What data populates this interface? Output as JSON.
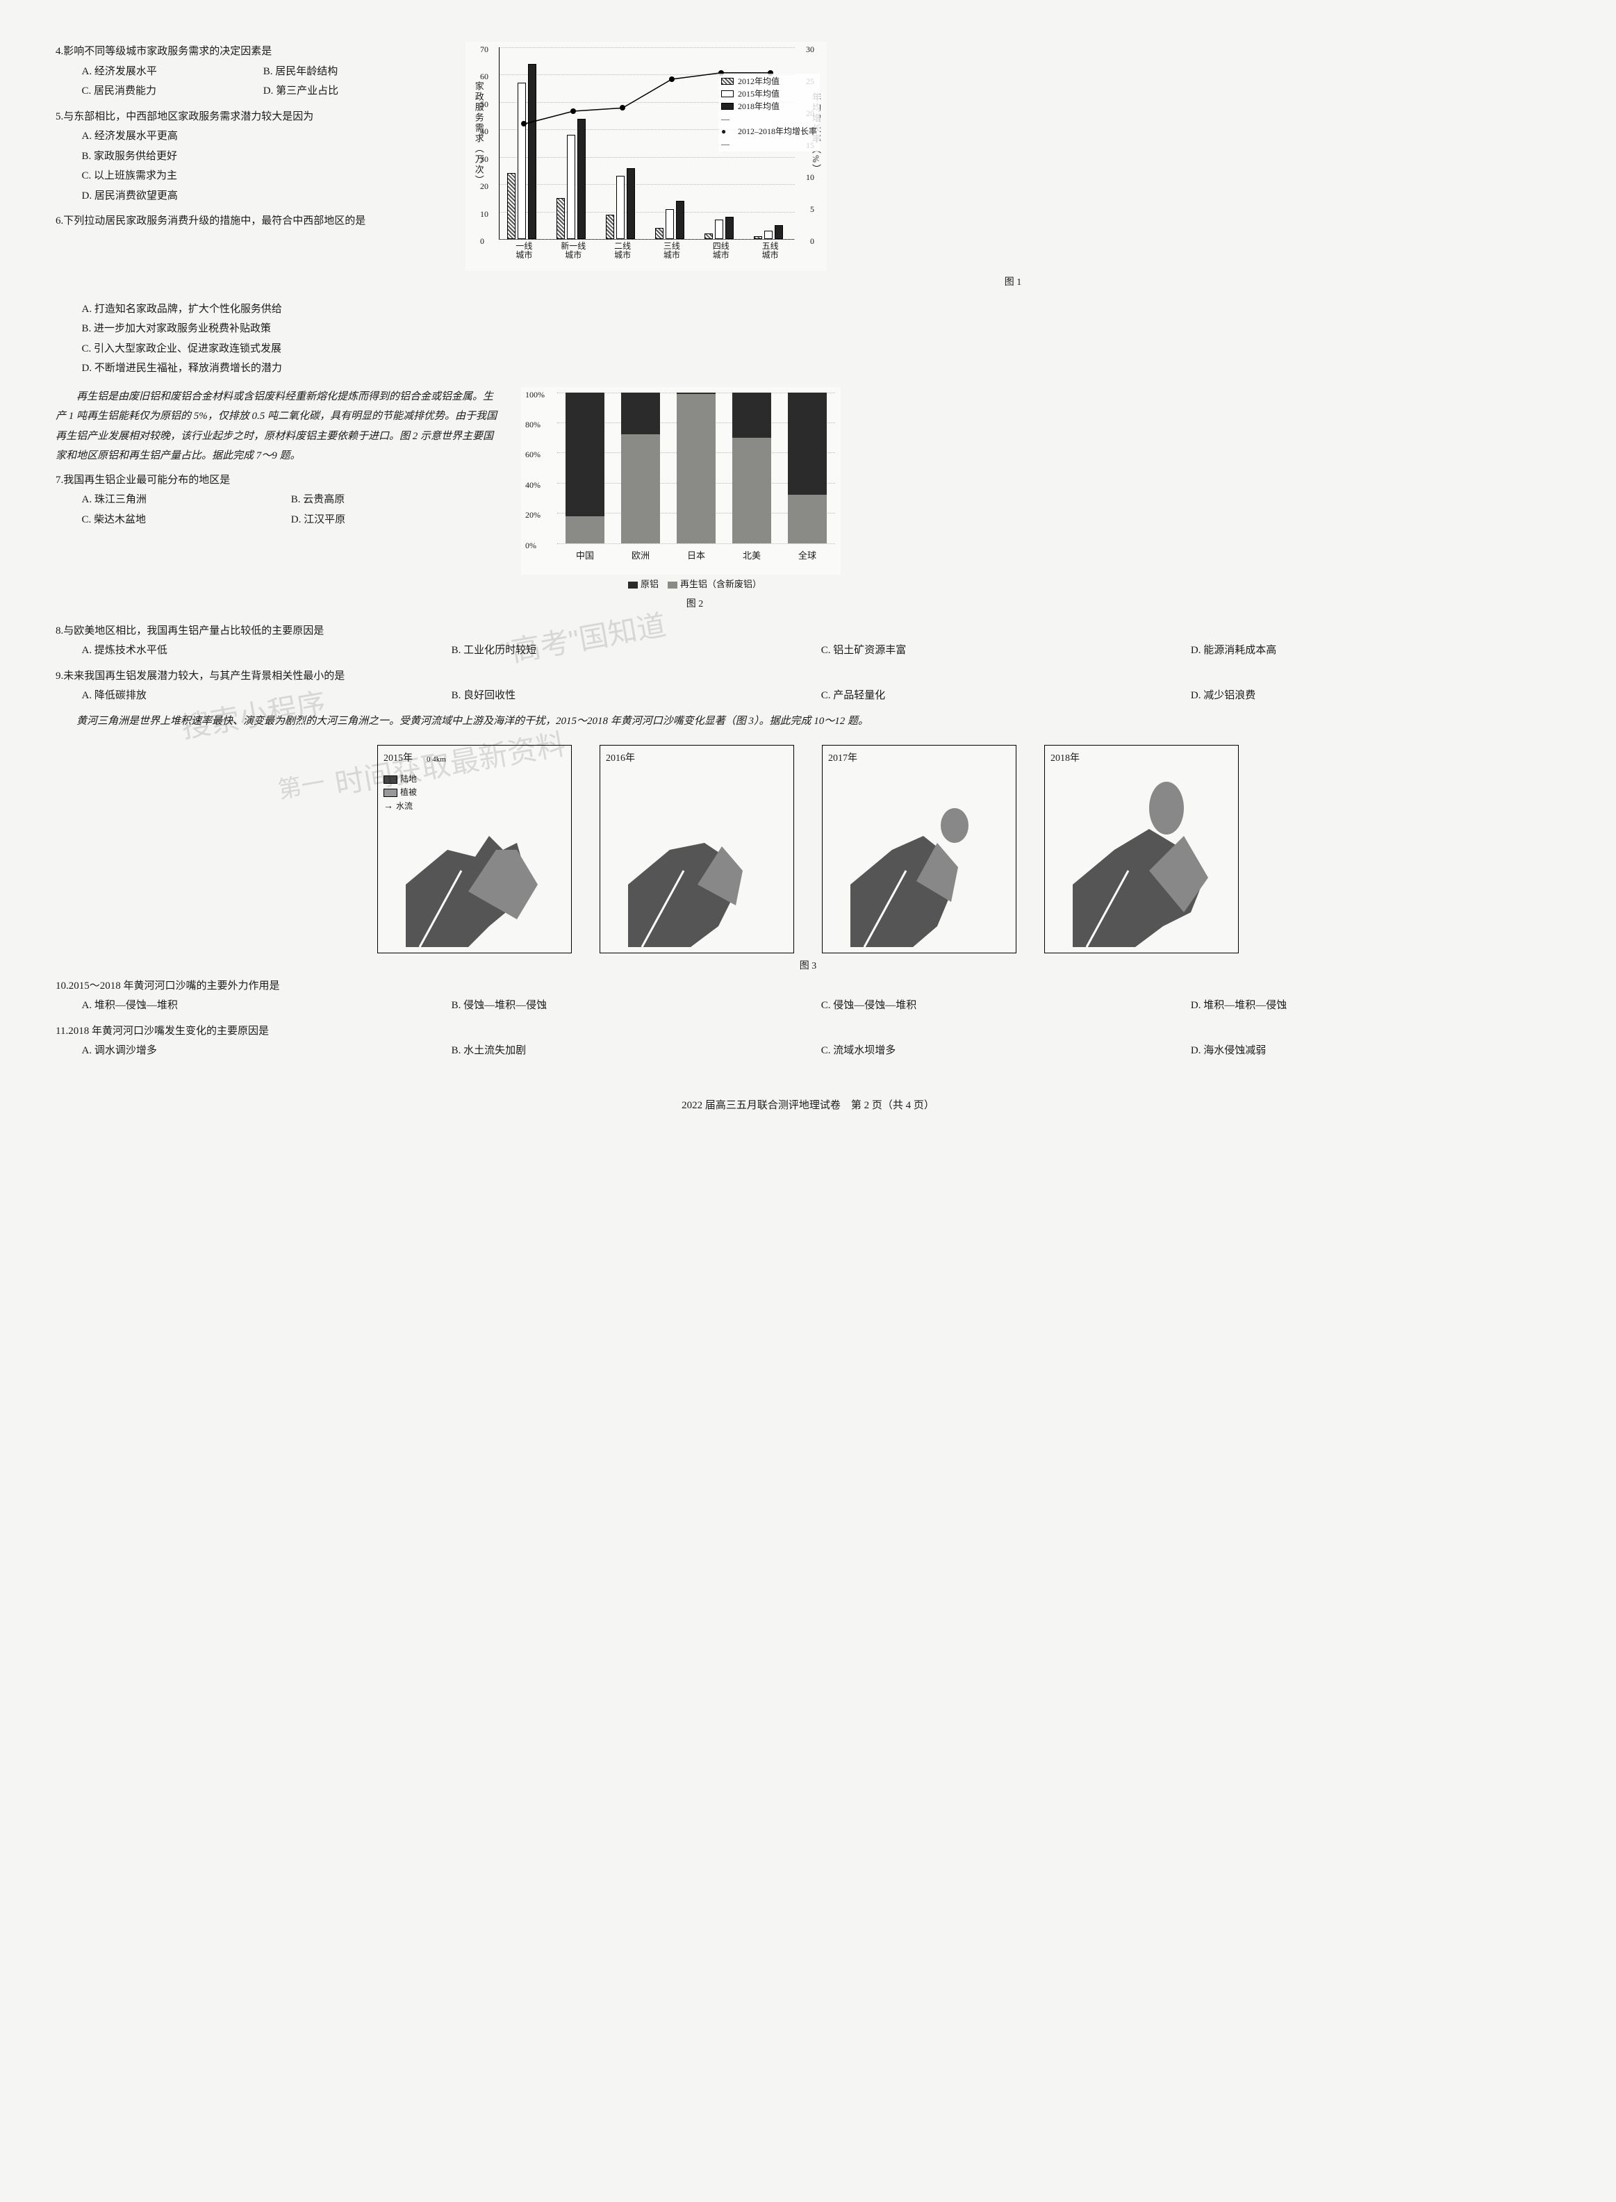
{
  "q4": {
    "num": "4.",
    "text": "影响不同等级城市家政服务需求的决定因素是",
    "opts": {
      "A": "A. 经济发展水平",
      "B": "B. 居民年龄结构",
      "C": "C. 居民消费能力",
      "D": "D. 第三产业占比"
    }
  },
  "q5": {
    "num": "5.",
    "text": "与东部相比，中西部地区家政服务需求潜力较大是因为",
    "opts": {
      "A": "A. 经济发展水平更高",
      "B": "B. 家政服务供给更好",
      "C": "C. 以上班族需求为主",
      "D": "D. 居民消费欲望更高"
    }
  },
  "q6": {
    "num": "6.",
    "text": "下列拉动居民家政服务消费升级的措施中，最符合中西部地区的是",
    "opts": {
      "A": "A. 打造知名家政品牌，扩大个性化服务供给",
      "B": "B. 进一步加大对家政服务业税费补贴政策",
      "C": "C. 引入大型家政企业、促进家政连锁式发展",
      "D": "D. 不断增进民生福祉，释放消费增长的潜力"
    }
  },
  "passage2": "再生铝是由废旧铝和废铝合金材料或含铝废料经重新熔化提炼而得到的铝合金或铝金属。生产 1 吨再生铝能耗仅为原铝的 5%，仅排放 0.5 吨二氧化碳，具有明显的节能减排优势。由于我国再生铝产业发展相对较晚，该行业起步之时，原材料废铝主要依赖于进口。图 2 示意世界主要国家和地区原铝和再生铝产量占比。据此完成 7～9 题。",
  "q7": {
    "num": "7.",
    "text": "我国再生铝企业最可能分布的地区是",
    "opts": {
      "A": "A. 珠江三角洲",
      "B": "B. 云贵高原",
      "C": "C. 柴达木盆地",
      "D": "D. 江汉平原"
    }
  },
  "q8": {
    "num": "8.",
    "text": "与欧美地区相比，我国再生铝产量占比较低的主要原因是",
    "opts": {
      "A": "A. 提炼技术水平低",
      "B": "B. 工业化历时较短",
      "C": "C. 铝土矿资源丰富",
      "D": "D. 能源消耗成本高"
    }
  },
  "q9": {
    "num": "9.",
    "text": "未来我国再生铝发展潜力较大，与其产生背景相关性最小的是",
    "opts": {
      "A": "A. 降低碳排放",
      "B": "B. 良好回收性",
      "C": "C. 产品轻量化",
      "D": "D. 减少铝浪费"
    }
  },
  "passage3": "黄河三角洲是世界上堆积速率最快、演变最为剧烈的大河三角洲之一。受黄河流域中上游及海洋的干扰，2015～2018 年黄河河口沙嘴变化显著（图 3）。据此完成 10～12 题。",
  "q10": {
    "num": "10.",
    "text": "2015～2018 年黄河河口沙嘴的主要外力作用是",
    "opts": {
      "A": "A. 堆积—侵蚀—堆积",
      "B": "B. 侵蚀—堆积—侵蚀",
      "C": "C. 侵蚀—侵蚀—堆积",
      "D": "D. 堆积—堆积—侵蚀"
    }
  },
  "q11": {
    "num": "11.",
    "text": "2018 年黄河河口沙嘴发生变化的主要原因是",
    "opts": {
      "A": "A. 调水调沙增多",
      "B": "B. 水土流失加剧",
      "C": "C. 流域水坝增多",
      "D": "D. 海水侵蚀减弱"
    }
  },
  "chart1": {
    "yl_title": "家政服务需求（万次）",
    "yr_title": "年均增长率（%）",
    "yl_max": 70,
    "yl_ticks": [
      0,
      10,
      20,
      30,
      40,
      50,
      60,
      70
    ],
    "yr_max": 30,
    "yr_ticks": [
      0,
      5,
      10,
      15,
      20,
      25,
      30
    ],
    "categories": [
      "一线\n城市",
      "新一线\n城市",
      "二线\n城市",
      "三线\n城市",
      "四线\n城市",
      "五线\n城市"
    ],
    "series": {
      "s1": {
        "name": "2012年均值",
        "type": "hatch",
        "values": [
          24,
          15,
          9,
          4,
          2,
          1
        ]
      },
      "s2": {
        "name": "2015年均值",
        "type": "white",
        "values": [
          57,
          38,
          23,
          11,
          7,
          3
        ]
      },
      "s3": {
        "name": "2018年均值",
        "type": "black",
        "values": [
          64,
          44,
          26,
          14,
          8,
          5
        ]
      },
      "growth": {
        "name": "2012–2018年均增长率",
        "values": [
          18,
          20,
          20.5,
          25,
          26,
          26
        ]
      }
    },
    "fig_label": "图 1"
  },
  "chart2": {
    "y_ticks": [
      "0%",
      "20%",
      "40%",
      "60%",
      "80%",
      "100%"
    ],
    "categories": [
      "中国",
      "欧洲",
      "日本",
      "北美",
      "全球"
    ],
    "primary": [
      82,
      28,
      1,
      30,
      68
    ],
    "recycle": [
      18,
      72,
      99,
      70,
      32
    ],
    "legend_primary": "原铝",
    "legend_recycle": "再生铝（含新废铝）",
    "fig_label": "图 2",
    "colors": {
      "primary": "#2b2b2b",
      "recycle": "#8a8a86"
    }
  },
  "maps": {
    "years": [
      "2015年",
      "2016年",
      "2017年",
      "2018年"
    ],
    "scale": "0     4km",
    "legend": {
      "land": "陆地",
      "veg": "植被",
      "flow": "水流"
    },
    "fig_label": "图 3"
  },
  "watermarks": {
    "w1": "搜索小程序",
    "w2": "\"高考\"国知道",
    "w3": "时间获取最新资料",
    "w4": "第一"
  },
  "footer": "2022 届高三五月联合测评地理试卷　第 2 页（共 4 页）"
}
